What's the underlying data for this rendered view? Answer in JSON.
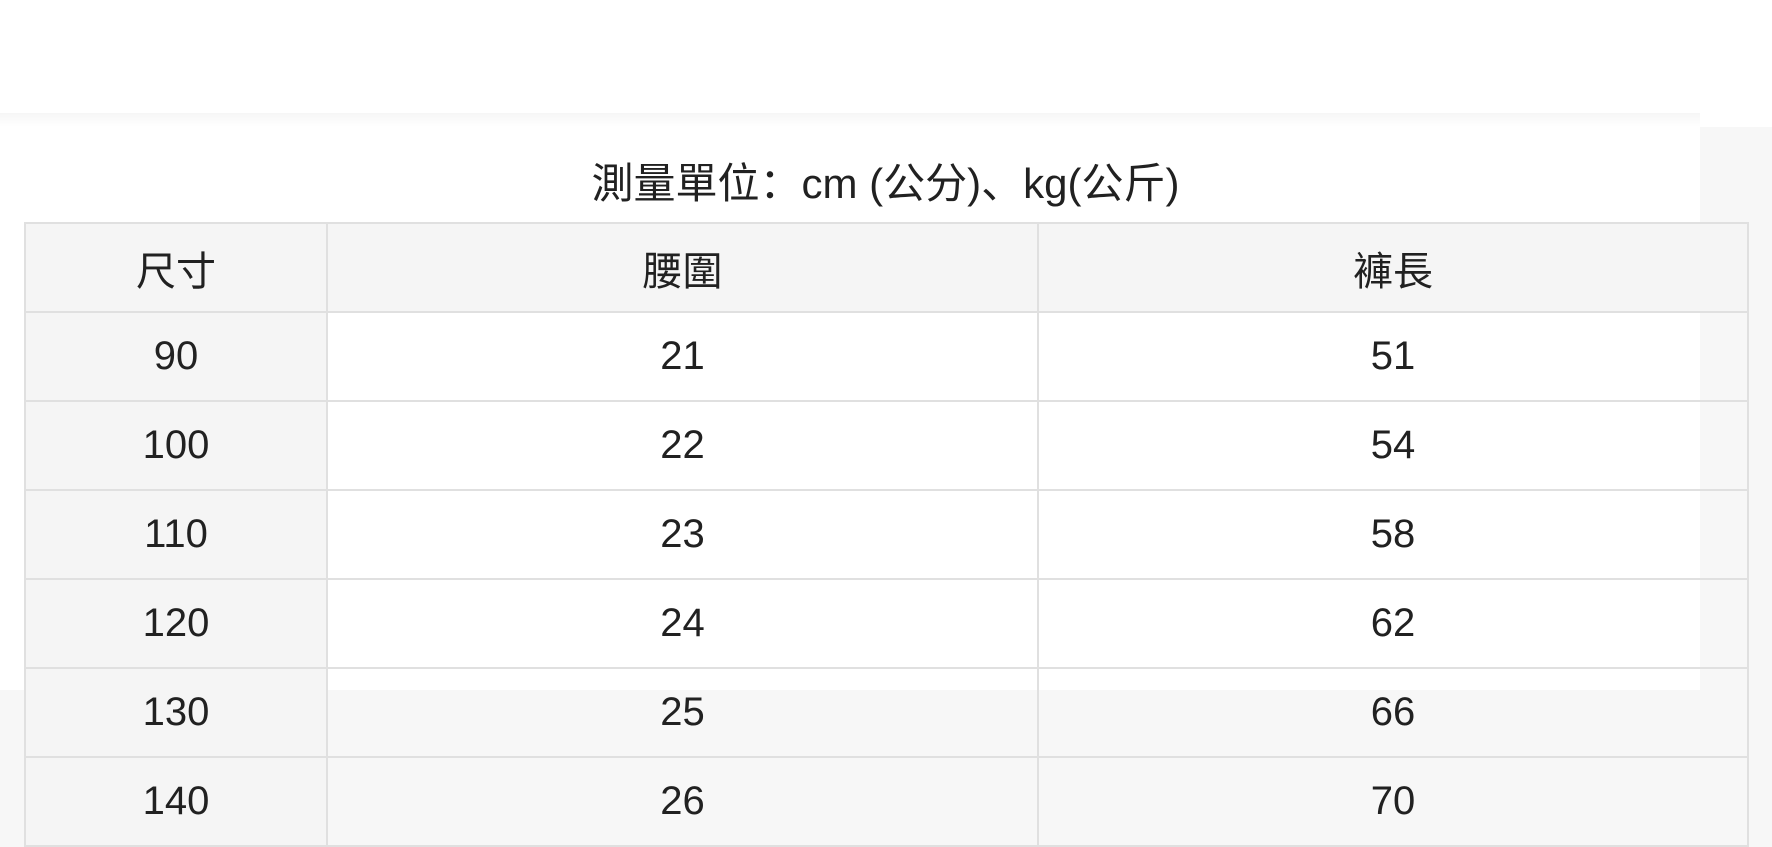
{
  "page": {
    "background_color": "#f7f7f7",
    "panel_color": "#ffffff",
    "header_cell_color": "#f5f5f5",
    "border_color": "#e0e0e0",
    "text_color": "#212121"
  },
  "size_chart": {
    "title": "測量單位：cm (公分)、kg(公斤)",
    "columns": [
      "尺寸",
      "腰圍",
      "褲長"
    ],
    "rows": [
      [
        "90",
        "21",
        "51"
      ],
      [
        "100",
        "22",
        "54"
      ],
      [
        "110",
        "23",
        "58"
      ],
      [
        "120",
        "24",
        "62"
      ],
      [
        "130",
        "25",
        "66"
      ],
      [
        "140",
        "26",
        "70"
      ]
    ]
  }
}
